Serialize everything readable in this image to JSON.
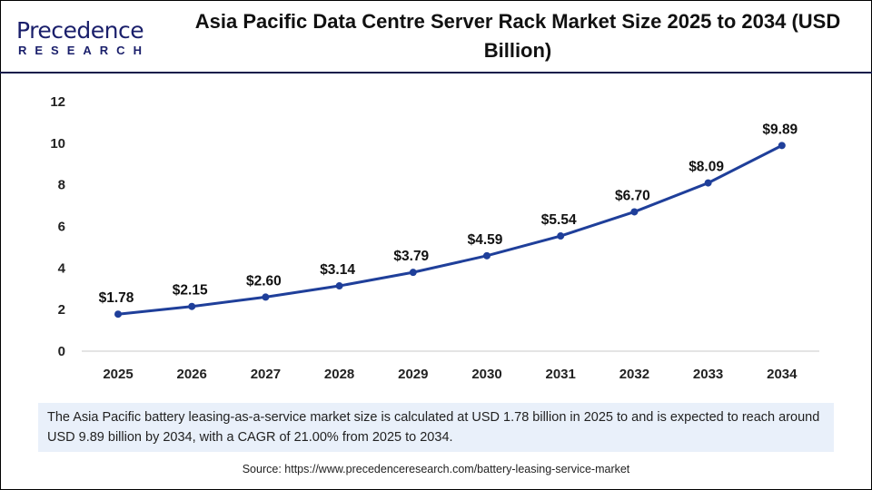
{
  "logo": {
    "line1": "Precedence",
    "line2": "RESEARCH"
  },
  "header": {
    "title": "Asia Pacific Data Centre Server Rack Market Size 2025 to 2034 (USD Billion)"
  },
  "chart_data": {
    "type": "line",
    "title": "Asia Pacific Data Centre Server Rack Market Size 2025 to 2034 (USD Billion)",
    "categories": [
      "2025",
      "2026",
      "2027",
      "2028",
      "2029",
      "2030",
      "2031",
      "2032",
      "2033",
      "2034"
    ],
    "values": [
      1.78,
      2.15,
      2.6,
      3.14,
      3.79,
      4.59,
      5.54,
      6.7,
      8.09,
      9.89
    ],
    "data_labels": [
      "$1.78",
      "$2.15",
      "$2.60",
      "$3.14",
      "$3.79",
      "$4.59",
      "$5.54",
      "$6.70",
      "$8.09",
      "$9.89"
    ],
    "yticks": [
      0,
      2,
      4,
      6,
      8,
      10,
      12
    ],
    "ylim": [
      0,
      12
    ],
    "xlabel": "",
    "ylabel": "",
    "grid": false,
    "line_color": "#1f3f9a"
  },
  "note": "The Asia Pacific battery leasing-as-a-service market size is calculated at USD 1.78 billion in 2025 to and is expected to reach around USD 9.89 billion by 2034, with a CAGR of 21.00% from 2025 to 2034.",
  "source": "Source: https://www.precedenceresearch.com/battery-leasing-service-market"
}
